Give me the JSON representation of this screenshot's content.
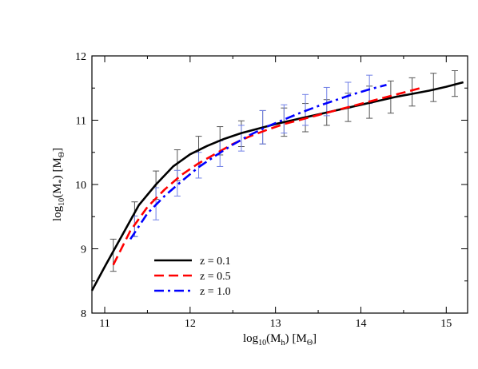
{
  "chart_data": {
    "type": "line",
    "title": "",
    "xlabel": {
      "main": "log",
      "sub": "10",
      "quantity": "(M",
      "quantity_sub": "h",
      "close": ")",
      "unit": "[M",
      "unit_sub": "Θ",
      "unit_close": "]"
    },
    "ylabel": {
      "main": "log",
      "sub": "10",
      "quantity": "(M",
      "quantity_sub": "*",
      "close": ")",
      "unit": "[M",
      "unit_sub": "Θ",
      "unit_close": "]"
    },
    "xlim": [
      10.85,
      15.25
    ],
    "ylim": [
      8,
      12
    ],
    "xticks": [
      "11",
      "12",
      "13",
      "14",
      "15"
    ],
    "yticks": [
      "8",
      "9",
      "10",
      "11",
      "12"
    ],
    "grid": false,
    "legend_position": "bottom-left",
    "series": [
      {
        "name": "z = 0.1",
        "color": "#000000",
        "style": "solid",
        "x": [
          10.85,
          11.0,
          11.2,
          11.4,
          11.6,
          11.8,
          12.0,
          12.2,
          12.4,
          12.6,
          12.8,
          13.0,
          13.2,
          13.4,
          13.6,
          13.8,
          14.0,
          14.2,
          14.4,
          14.6,
          14.8,
          15.0,
          15.2
        ],
        "y": [
          8.35,
          8.72,
          9.2,
          9.68,
          10.0,
          10.28,
          10.47,
          10.6,
          10.71,
          10.8,
          10.87,
          10.94,
          11.0,
          11.06,
          11.12,
          11.18,
          11.24,
          11.3,
          11.36,
          11.41,
          11.46,
          11.52,
          11.59
        ]
      },
      {
        "name": "z = 0.5",
        "color": "#ff0000",
        "style": "dashed",
        "x": [
          11.1,
          11.3,
          11.5,
          11.7,
          11.9,
          12.1,
          12.3,
          12.5,
          12.7,
          12.9,
          13.1,
          13.3,
          13.5,
          13.7,
          13.9,
          14.1,
          14.3,
          14.5,
          14.7
        ],
        "y": [
          8.75,
          9.28,
          9.65,
          9.92,
          10.15,
          10.33,
          10.48,
          10.63,
          10.75,
          10.85,
          10.94,
          11.01,
          11.08,
          11.15,
          11.22,
          11.29,
          11.36,
          11.43,
          11.5
        ]
      },
      {
        "name": "z = 1.0",
        "color": "#0000ff",
        "style": "dashdot",
        "x": [
          11.3,
          11.5,
          11.7,
          11.9,
          12.1,
          12.3,
          12.5,
          12.7,
          12.9,
          13.1,
          13.3,
          13.5,
          13.7,
          13.9,
          14.1,
          14.3
        ],
        "y": [
          9.15,
          9.55,
          9.82,
          10.05,
          10.27,
          10.45,
          10.62,
          10.77,
          10.9,
          11.01,
          11.12,
          11.22,
          11.31,
          11.4,
          11.48,
          11.55
        ]
      }
    ],
    "error_bars": [
      {
        "series": "z = 0.1",
        "color": "#555555",
        "x": [
          11.1,
          11.35,
          11.6,
          11.85,
          12.1,
          12.35,
          12.6,
          12.85,
          13.1,
          13.35,
          13.6,
          13.85,
          14.1,
          14.35,
          14.6,
          14.85,
          15.1
        ],
        "y": [
          8.9,
          9.46,
          9.99,
          10.3,
          10.53,
          10.68,
          10.79,
          10.89,
          10.97,
          11.04,
          11.12,
          11.2,
          11.28,
          11.36,
          11.44,
          11.51,
          11.57
        ],
        "err": [
          0.25,
          0.27,
          0.22,
          0.24,
          0.22,
          0.22,
          0.2,
          0.26,
          0.22,
          0.22,
          0.2,
          0.22,
          0.25,
          0.25,
          0.22,
          0.22,
          0.2
        ]
      },
      {
        "series": "z = 1.0",
        "color": "#6f7fe6",
        "x": [
          11.35,
          11.6,
          11.85,
          12.1,
          12.35,
          12.6,
          12.85,
          13.1,
          13.35,
          13.6,
          13.85,
          14.1
        ],
        "y": [
          9.35,
          9.7,
          10.02,
          10.3,
          10.48,
          10.72,
          10.89,
          11.02,
          11.16,
          11.29,
          11.39,
          11.48
        ],
        "err": [
          0.16,
          0.25,
          0.2,
          0.2,
          0.2,
          0.2,
          0.26,
          0.22,
          0.24,
          0.22,
          0.2,
          0.22
        ]
      }
    ]
  }
}
